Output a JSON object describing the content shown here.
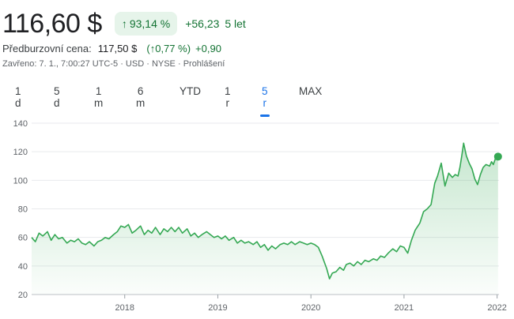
{
  "header": {
    "price": "116,60 $",
    "change_pct": "93,14 %",
    "change_abs": "+56,23",
    "change_period": "5 let"
  },
  "premarket": {
    "label": "Předburzovní cena:",
    "price": "117,50 $",
    "pct": "0,77 %",
    "abs": "+0,90"
  },
  "status": {
    "closed": "Zavřeno: 7. 1., 7:00:27 UTC-5",
    "currency": "USD",
    "exchange": "NYSE",
    "disclaimer": "Prohlášení"
  },
  "ranges": [
    "1 d",
    "5 d",
    "1 m",
    "6 m",
    "YTD",
    "1 r",
    "5 r",
    "MAX"
  ],
  "active_range": "5 r",
  "colors": {
    "positive": "#137333",
    "line": "#34a853",
    "accent": "#1a73e8"
  },
  "chart_data": {
    "type": "area",
    "ylim": [
      20,
      140
    ],
    "xlim": [
      2017.0,
      2022.02
    ],
    "yticks": [
      20,
      40,
      60,
      80,
      100,
      120,
      140
    ],
    "xticks": [
      {
        "x": 2018,
        "label": "2018"
      },
      {
        "x": 2019,
        "label": "2019"
      },
      {
        "x": 2020,
        "label": "2020"
      },
      {
        "x": 2021,
        "label": "2021"
      },
      {
        "x": 2022,
        "label": "2022"
      }
    ],
    "grid": true,
    "series": [
      {
        "points": [
          [
            2017.0,
            60
          ],
          [
            2017.04,
            57
          ],
          [
            2017.08,
            63
          ],
          [
            2017.12,
            61
          ],
          [
            2017.17,
            64
          ],
          [
            2017.21,
            58
          ],
          [
            2017.25,
            62
          ],
          [
            2017.29,
            59
          ],
          [
            2017.33,
            60
          ],
          [
            2017.38,
            56
          ],
          [
            2017.42,
            58
          ],
          [
            2017.46,
            57
          ],
          [
            2017.5,
            59
          ],
          [
            2017.54,
            56
          ],
          [
            2017.58,
            55
          ],
          [
            2017.62,
            57
          ],
          [
            2017.67,
            54
          ],
          [
            2017.71,
            57
          ],
          [
            2017.75,
            58
          ],
          [
            2017.79,
            60
          ],
          [
            2017.83,
            59
          ],
          [
            2017.88,
            62
          ],
          [
            2017.92,
            64
          ],
          [
            2017.96,
            68
          ],
          [
            2018.0,
            67
          ],
          [
            2018.04,
            69
          ],
          [
            2018.08,
            63
          ],
          [
            2018.12,
            65
          ],
          [
            2018.17,
            68
          ],
          [
            2018.21,
            62
          ],
          [
            2018.25,
            65
          ],
          [
            2018.29,
            63
          ],
          [
            2018.33,
            67
          ],
          [
            2018.38,
            62
          ],
          [
            2018.42,
            66
          ],
          [
            2018.46,
            64
          ],
          [
            2018.5,
            67
          ],
          [
            2018.54,
            64
          ],
          [
            2018.58,
            67
          ],
          [
            2018.62,
            63
          ],
          [
            2018.67,
            66
          ],
          [
            2018.71,
            61
          ],
          [
            2018.75,
            63
          ],
          [
            2018.79,
            60
          ],
          [
            2018.83,
            62
          ],
          [
            2018.88,
            64
          ],
          [
            2018.92,
            62
          ],
          [
            2018.96,
            60
          ],
          [
            2019.0,
            61
          ],
          [
            2019.04,
            59
          ],
          [
            2019.08,
            61
          ],
          [
            2019.12,
            58
          ],
          [
            2019.17,
            60
          ],
          [
            2019.21,
            56
          ],
          [
            2019.25,
            58
          ],
          [
            2019.29,
            56
          ],
          [
            2019.33,
            57
          ],
          [
            2019.38,
            55
          ],
          [
            2019.42,
            57
          ],
          [
            2019.46,
            53
          ],
          [
            2019.5,
            55
          ],
          [
            2019.54,
            51
          ],
          [
            2019.58,
            54
          ],
          [
            2019.62,
            52
          ],
          [
            2019.67,
            55
          ],
          [
            2019.71,
            56
          ],
          [
            2019.75,
            55
          ],
          [
            2019.79,
            57
          ],
          [
            2019.83,
            55
          ],
          [
            2019.88,
            57
          ],
          [
            2019.92,
            56
          ],
          [
            2019.96,
            55
          ],
          [
            2020.0,
            56
          ],
          [
            2020.04,
            55
          ],
          [
            2020.08,
            53
          ],
          [
            2020.12,
            47
          ],
          [
            2020.17,
            38
          ],
          [
            2020.2,
            31
          ],
          [
            2020.23,
            35
          ],
          [
            2020.27,
            36
          ],
          [
            2020.31,
            39
          ],
          [
            2020.35,
            37
          ],
          [
            2020.38,
            41
          ],
          [
            2020.42,
            42
          ],
          [
            2020.46,
            40
          ],
          [
            2020.5,
            43
          ],
          [
            2020.54,
            41
          ],
          [
            2020.58,
            44
          ],
          [
            2020.62,
            43
          ],
          [
            2020.67,
            45
          ],
          [
            2020.71,
            44
          ],
          [
            2020.75,
            47
          ],
          [
            2020.79,
            46
          ],
          [
            2020.83,
            49
          ],
          [
            2020.88,
            52
          ],
          [
            2020.92,
            50
          ],
          [
            2020.96,
            54
          ],
          [
            2021.0,
            53
          ],
          [
            2021.04,
            49
          ],
          [
            2021.08,
            58
          ],
          [
            2021.12,
            65
          ],
          [
            2021.17,
            70
          ],
          [
            2021.21,
            78
          ],
          [
            2021.25,
            80
          ],
          [
            2021.29,
            83
          ],
          [
            2021.33,
            98
          ],
          [
            2021.36,
            103
          ],
          [
            2021.4,
            112
          ],
          [
            2021.44,
            96
          ],
          [
            2021.48,
            105
          ],
          [
            2021.52,
            102
          ],
          [
            2021.55,
            104
          ],
          [
            2021.58,
            103
          ],
          [
            2021.6,
            109
          ],
          [
            2021.62,
            117
          ],
          [
            2021.64,
            126
          ],
          [
            2021.67,
            117
          ],
          [
            2021.7,
            112
          ],
          [
            2021.73,
            108
          ],
          [
            2021.76,
            101
          ],
          [
            2021.79,
            97
          ],
          [
            2021.82,
            104
          ],
          [
            2021.85,
            109
          ],
          [
            2021.88,
            111
          ],
          [
            2021.92,
            110
          ],
          [
            2021.94,
            113
          ],
          [
            2021.96,
            111
          ],
          [
            2021.98,
            115
          ],
          [
            2022.0,
            117
          ],
          [
            2022.01,
            116.6
          ]
        ]
      }
    ]
  }
}
